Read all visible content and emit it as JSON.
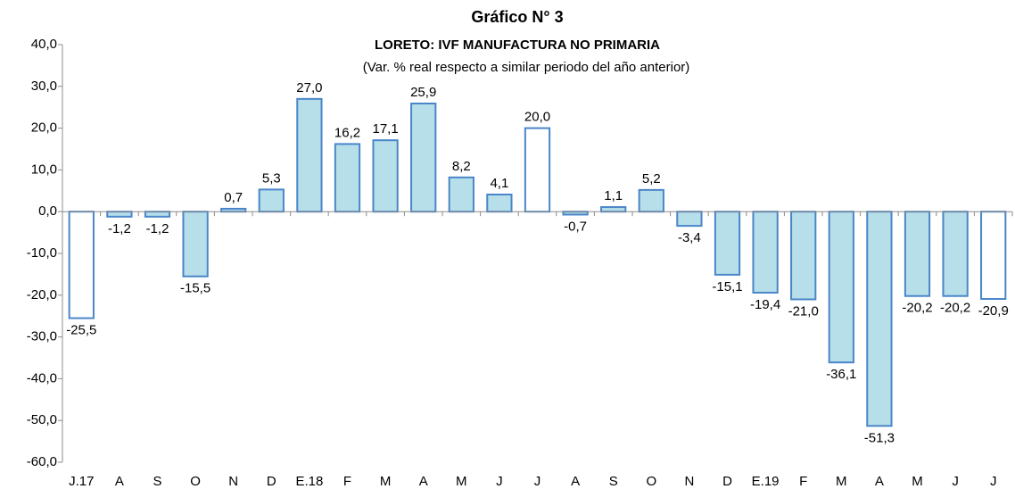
{
  "chart_data": {
    "type": "bar",
    "title": "Gráfico N° 3",
    "subtitle": "LORETO: IVF MANUFACTURA NO PRIMARIA",
    "note": "(Var. % real respecto a similar periodo del año anterior)",
    "categories": [
      "J.17",
      "A",
      "S",
      "O",
      "N",
      "D",
      "E.18",
      "F",
      "M",
      "A",
      "M",
      "J",
      "J",
      "A",
      "S",
      "O",
      "N",
      "D",
      "E.19",
      "F",
      "M",
      "A",
      "M",
      "J",
      "J"
    ],
    "values": [
      -25.5,
      -1.2,
      -1.2,
      -15.5,
      0.7,
      5.3,
      27.0,
      16.2,
      17.1,
      25.9,
      8.2,
      4.1,
      20.0,
      -0.7,
      1.1,
      5.2,
      -3.4,
      -15.1,
      -19.4,
      -21.0,
      -36.1,
      -51.3,
      -20.2,
      -20.2,
      -20.9
    ],
    "value_labels": [
      "-25,5",
      "-1,2",
      "-1,2",
      "-15,5",
      "0,7",
      "5,3",
      "27,0",
      "16,2",
      "17,1",
      "25,9",
      "8,2",
      "4,1",
      "20,0",
      "-0,7",
      "1,1",
      "5,2",
      "-3,4",
      "-15,1",
      "-19,4",
      "-21,0",
      "-36,1",
      "-51,3",
      "-20,2",
      "-20,2",
      "-20,9"
    ],
    "colors": [
      "#ffffff",
      "#b7dfe9",
      "#b7dfe9",
      "#b7dfe9",
      "#b7dfe9",
      "#b7dfe9",
      "#b7dfe9",
      "#b7dfe9",
      "#b7dfe9",
      "#b7dfe9",
      "#b7dfe9",
      "#b7dfe9",
      "#ffffff",
      "#b7dfe9",
      "#b7dfe9",
      "#b7dfe9",
      "#b7dfe9",
      "#b7dfe9",
      "#b7dfe9",
      "#b7dfe9",
      "#b7dfe9",
      "#b7dfe9",
      "#b7dfe9",
      "#b7dfe9",
      "#ffffff"
    ],
    "edge_color": "#4a86c8",
    "ylim": [
      -60,
      40
    ],
    "yticks": [
      {
        "value": -60,
        "label": "-60,0"
      },
      {
        "value": -50,
        "label": "-50,0"
      },
      {
        "value": -40,
        "label": "-40,0"
      },
      {
        "value": -30,
        "label": "-30,0"
      },
      {
        "value": -20,
        "label": "-20,0"
      },
      {
        "value": -10,
        "label": "-10,0"
      },
      {
        "value": 0,
        "label": "0,0"
      },
      {
        "value": 10,
        "label": "10,0"
      },
      {
        "value": 20,
        "label": "20,0"
      },
      {
        "value": 30,
        "label": "30,0"
      },
      {
        "value": 40,
        "label": "40,0"
      }
    ],
    "grid": false
  }
}
